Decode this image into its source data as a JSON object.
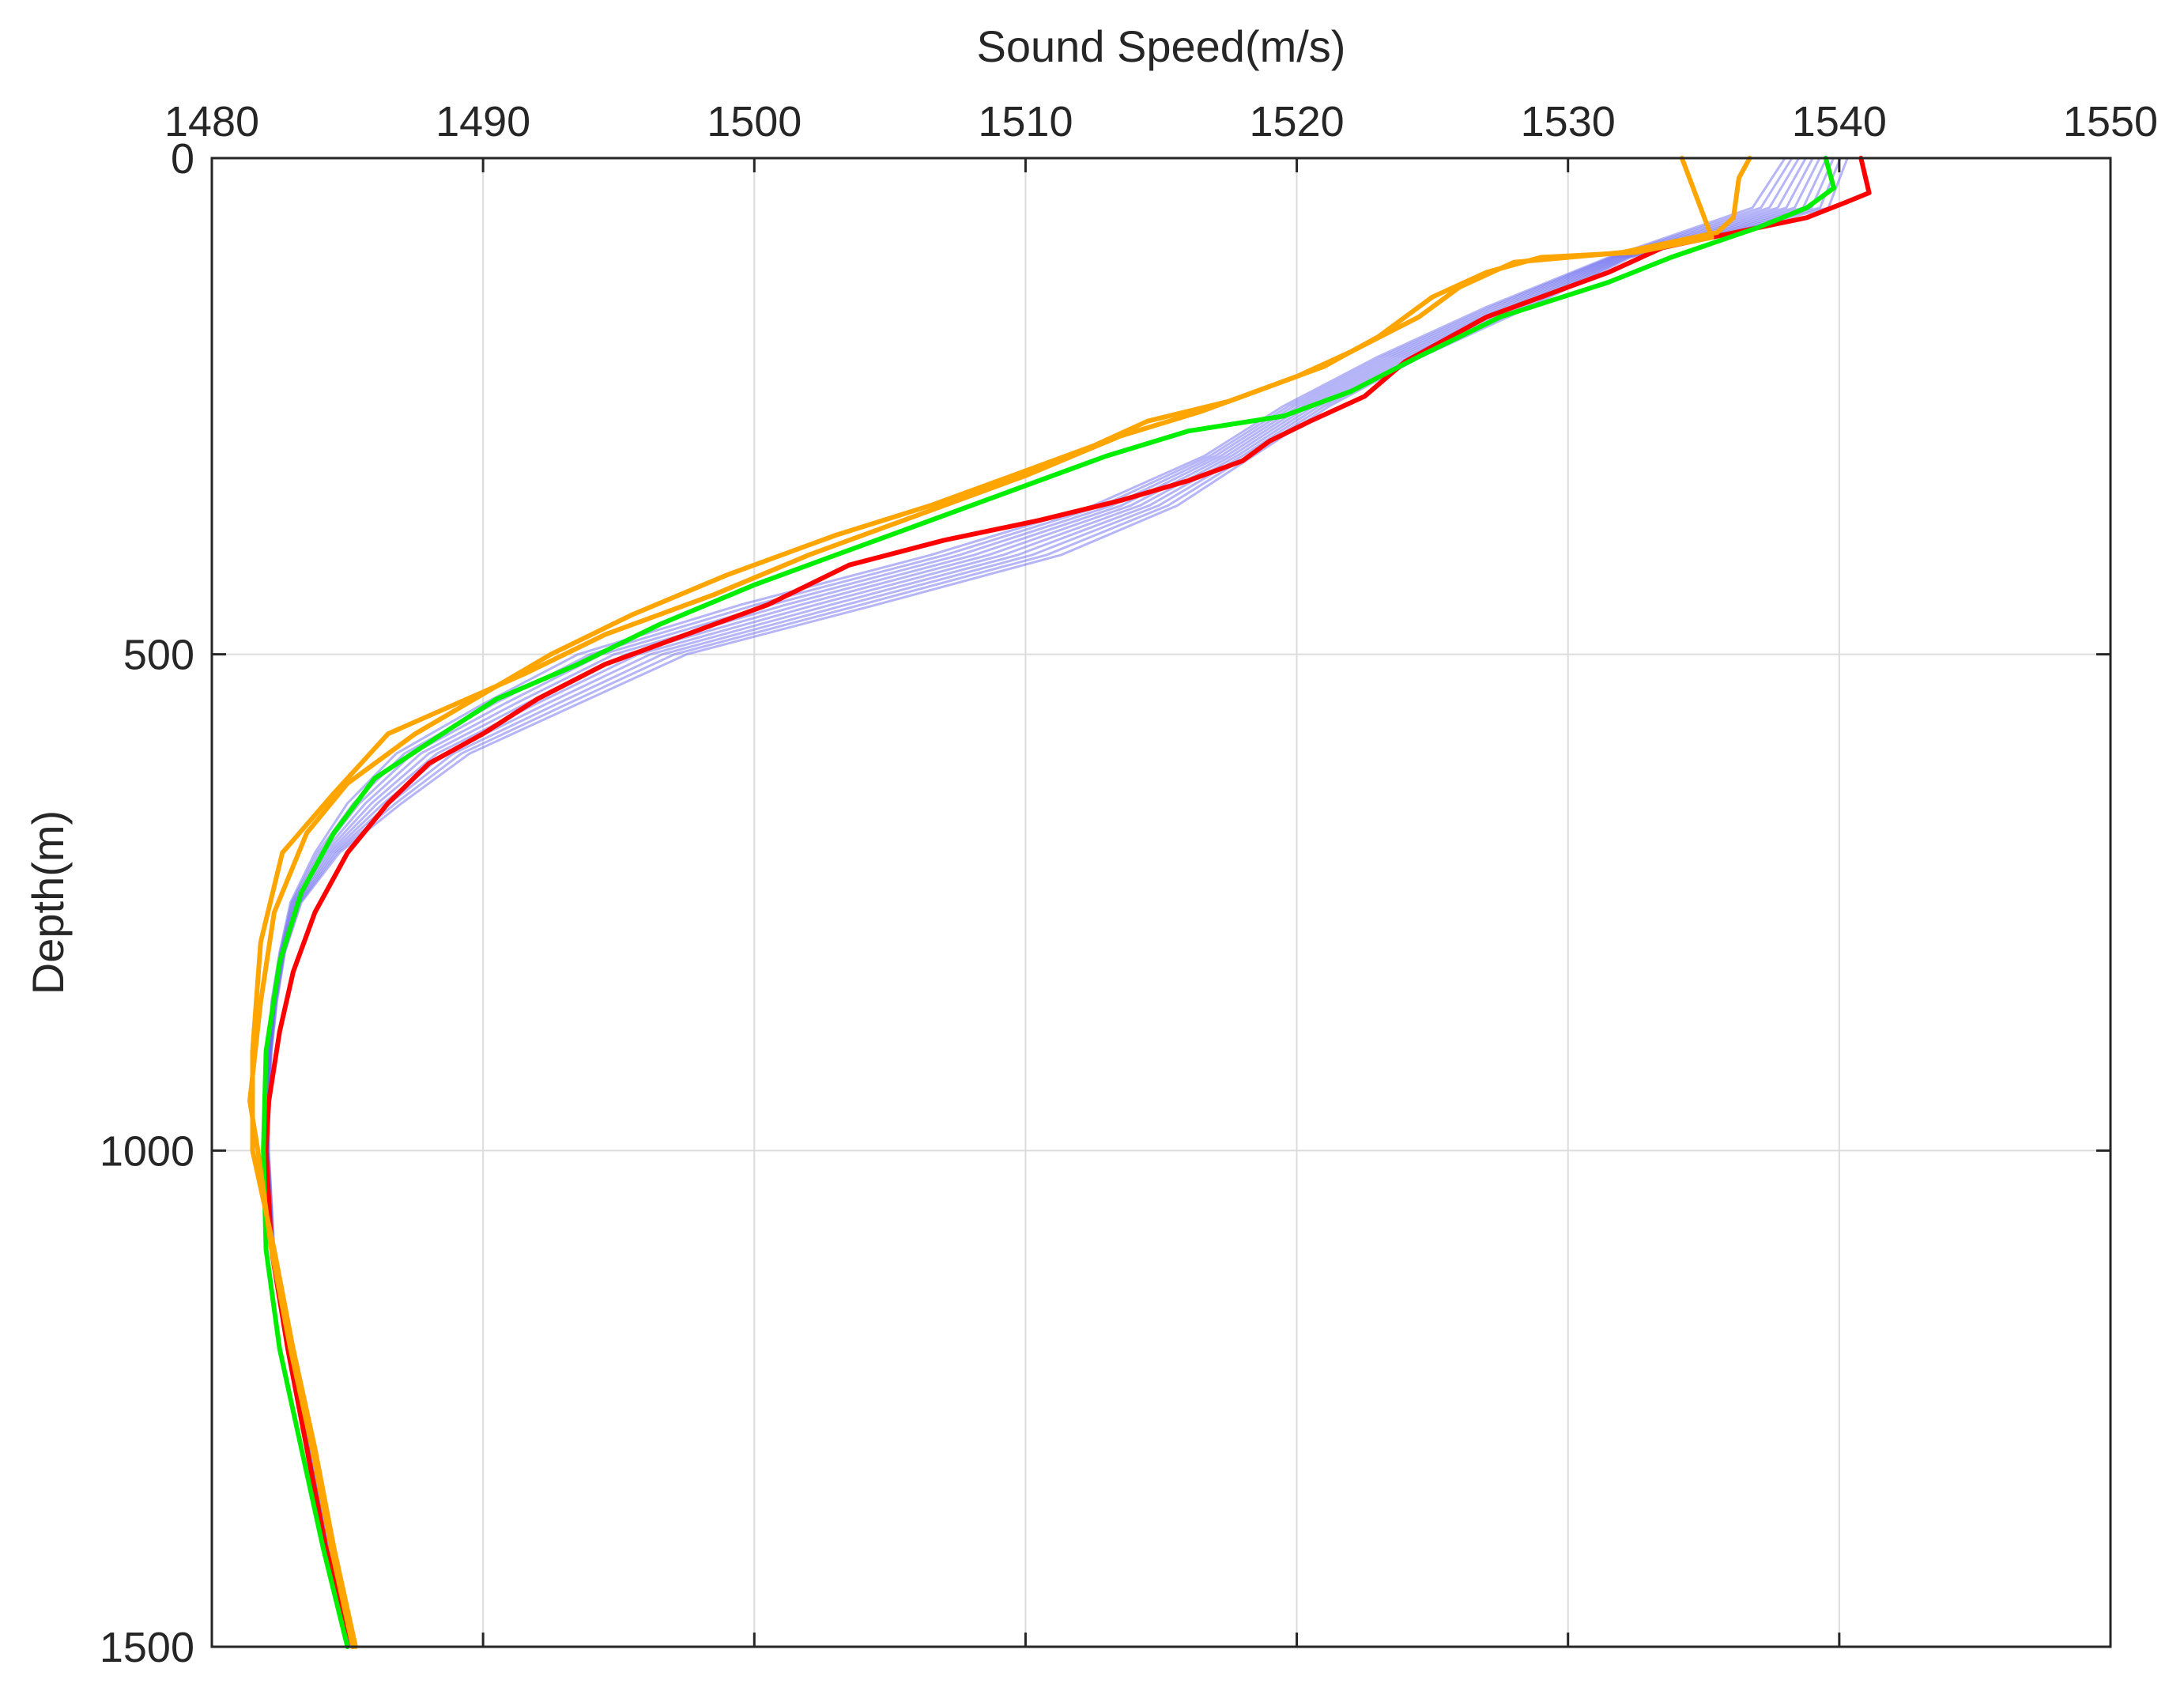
{
  "chart_data": {
    "type": "line",
    "title": "",
    "xlabel": "Sound Speed(m/s)",
    "ylabel": "Depth(m)",
    "x_axis_position": "top",
    "y_axis_reversed": true,
    "xlim": [
      1480,
      1550
    ],
    "ylim": [
      0,
      1500
    ],
    "xticks": [
      1480,
      1490,
      1500,
      1510,
      1520,
      1530,
      1540,
      1550
    ],
    "yticks": [
      0,
      500,
      1000,
      1500
    ],
    "xtick_labels": [
      "1480",
      "1490",
      "1500",
      "1510",
      "1520",
      "1530",
      "1540",
      "1550"
    ],
    "ytick_labels": [
      "0",
      "500",
      "1000",
      "1500"
    ],
    "grid": true,
    "legend": "none",
    "colors": {
      "ensemble": "#6b6bf0",
      "red": "#ff0000",
      "green": "#00ee00",
      "orange": "#ffa500",
      "axis": "#262626",
      "grid": "#dcdcdc"
    },
    "ensemble": {
      "count": 10,
      "depths": [
        0,
        50,
        100,
        150,
        200,
        250,
        300,
        350,
        400,
        450,
        500,
        550,
        600,
        650,
        700,
        750,
        800,
        850,
        900,
        950,
        1000,
        1100,
        1200,
        1300,
        1400,
        1500
      ],
      "lower": [
        1538.0,
        1536.8,
        1531.5,
        1527.0,
        1523.0,
        1519.5,
        1516.6,
        1512.5,
        1506.5,
        1499.5,
        1493.5,
        1490.0,
        1486.8,
        1485.0,
        1483.8,
        1482.9,
        1482.5,
        1482.2,
        1482.1,
        1482.0,
        1482.0,
        1482.2,
        1482.8,
        1483.5,
        1484.2,
        1485.1
      ],
      "upper": [
        1540.3,
        1539.6,
        1532.3,
        1528.6,
        1524.6,
        1521.2,
        1518.4,
        1515.6,
        1511.3,
        1504.5,
        1497.5,
        1493.5,
        1489.5,
        1487.0,
        1484.7,
        1483.3,
        1482.7,
        1482.4,
        1482.2,
        1482.1,
        1482.1,
        1482.3,
        1482.9,
        1483.6,
        1484.3,
        1485.1
      ]
    },
    "series": [
      {
        "color": "red",
        "points": [
          [
            1540.8,
            0
          ],
          [
            1541.1,
            35
          ],
          [
            1540.2,
            45
          ],
          [
            1538.8,
            60
          ],
          [
            1533.5,
            90
          ],
          [
            1531.5,
            115
          ],
          [
            1527.0,
            160
          ],
          [
            1524.0,
            205
          ],
          [
            1522.5,
            240
          ],
          [
            1520.5,
            265
          ],
          [
            1519.0,
            285
          ],
          [
            1518.0,
            305
          ],
          [
            1516.0,
            325
          ],
          [
            1513.5,
            345
          ],
          [
            1510.5,
            365
          ],
          [
            1507.0,
            385
          ],
          [
            1503.5,
            410
          ],
          [
            1500.5,
            450
          ],
          [
            1497.5,
            480
          ],
          [
            1494.5,
            510
          ],
          [
            1492.0,
            545
          ],
          [
            1490.0,
            580
          ],
          [
            1488.0,
            610
          ],
          [
            1486.5,
            650
          ],
          [
            1485.0,
            700
          ],
          [
            1483.8,
            760
          ],
          [
            1483.0,
            820
          ],
          [
            1482.5,
            880
          ],
          [
            1482.1,
            950
          ],
          [
            1482.0,
            1000
          ],
          [
            1482.2,
            1100
          ],
          [
            1482.8,
            1200
          ],
          [
            1483.5,
            1300
          ],
          [
            1484.2,
            1400
          ],
          [
            1485.2,
            1500
          ]
        ]
      },
      {
        "color": "green",
        "points": [
          [
            1539.5,
            0
          ],
          [
            1539.8,
            30
          ],
          [
            1538.8,
            50
          ],
          [
            1537.0,
            70
          ],
          [
            1533.8,
            100
          ],
          [
            1531.5,
            125
          ],
          [
            1527.5,
            160
          ],
          [
            1524.5,
            200
          ],
          [
            1522.0,
            235
          ],
          [
            1519.5,
            260
          ],
          [
            1516.0,
            275
          ],
          [
            1513.0,
            300
          ],
          [
            1509.5,
            335
          ],
          [
            1506.0,
            370
          ],
          [
            1503.0,
            400
          ],
          [
            1500.0,
            430
          ],
          [
            1496.5,
            470
          ],
          [
            1493.5,
            510
          ],
          [
            1490.5,
            545
          ],
          [
            1488.5,
            580
          ],
          [
            1486.0,
            625
          ],
          [
            1484.5,
            680
          ],
          [
            1483.3,
            740
          ],
          [
            1482.5,
            810
          ],
          [
            1482.0,
            900
          ],
          [
            1481.9,
            1000
          ],
          [
            1482.0,
            1100
          ],
          [
            1482.5,
            1200
          ],
          [
            1483.3,
            1300
          ],
          [
            1484.1,
            1400
          ],
          [
            1485.0,
            1500
          ]
        ]
      },
      {
        "color": "orange",
        "points": [
          [
            1536.7,
            0
          ],
          [
            1536.3,
            20
          ],
          [
            1536.1,
            60
          ],
          [
            1535.5,
            75
          ],
          [
            1532.0,
            95
          ],
          [
            1528.0,
            105
          ],
          [
            1526.0,
            130
          ],
          [
            1524.5,
            160
          ],
          [
            1522.0,
            195
          ],
          [
            1520.0,
            220
          ],
          [
            1517.5,
            245
          ],
          [
            1514.5,
            265
          ],
          [
            1512.5,
            290
          ],
          [
            1510.5,
            310
          ],
          [
            1506.5,
            350
          ],
          [
            1503.0,
            380
          ],
          [
            1499.0,
            420
          ],
          [
            1495.5,
            460
          ],
          [
            1492.5,
            500
          ],
          [
            1490.0,
            540
          ],
          [
            1487.5,
            580
          ],
          [
            1485.0,
            630
          ],
          [
            1483.5,
            680
          ],
          [
            1482.3,
            760
          ],
          [
            1481.8,
            850
          ],
          [
            1481.4,
            950
          ],
          [
            1481.7,
            1000
          ],
          [
            1482.2,
            1100
          ],
          [
            1482.9,
            1200
          ],
          [
            1483.7,
            1300
          ],
          [
            1484.4,
            1400
          ],
          [
            1485.2,
            1500
          ]
        ]
      },
      {
        "color": "orange",
        "points": [
          [
            1534.2,
            0
          ],
          [
            1535.3,
            80
          ],
          [
            1532.5,
            95
          ],
          [
            1529.0,
            100
          ],
          [
            1527.0,
            115
          ],
          [
            1525.0,
            140
          ],
          [
            1523.0,
            180
          ],
          [
            1521.0,
            210
          ],
          [
            1519.0,
            230
          ],
          [
            1516.5,
            255
          ],
          [
            1513.5,
            280
          ],
          [
            1510.0,
            320
          ],
          [
            1506.0,
            360
          ],
          [
            1502.0,
            400
          ],
          [
            1498.5,
            440
          ],
          [
            1494.5,
            480
          ],
          [
            1491.5,
            520
          ],
          [
            1489.0,
            550
          ],
          [
            1486.5,
            580
          ],
          [
            1484.5,
            640
          ],
          [
            1482.6,
            700
          ],
          [
            1481.8,
            790
          ],
          [
            1481.5,
            900
          ],
          [
            1481.5,
            1000
          ],
          [
            1482.3,
            1100
          ],
          [
            1483.0,
            1200
          ],
          [
            1483.8,
            1300
          ],
          [
            1484.5,
            1400
          ],
          [
            1485.3,
            1500
          ]
        ]
      }
    ]
  }
}
